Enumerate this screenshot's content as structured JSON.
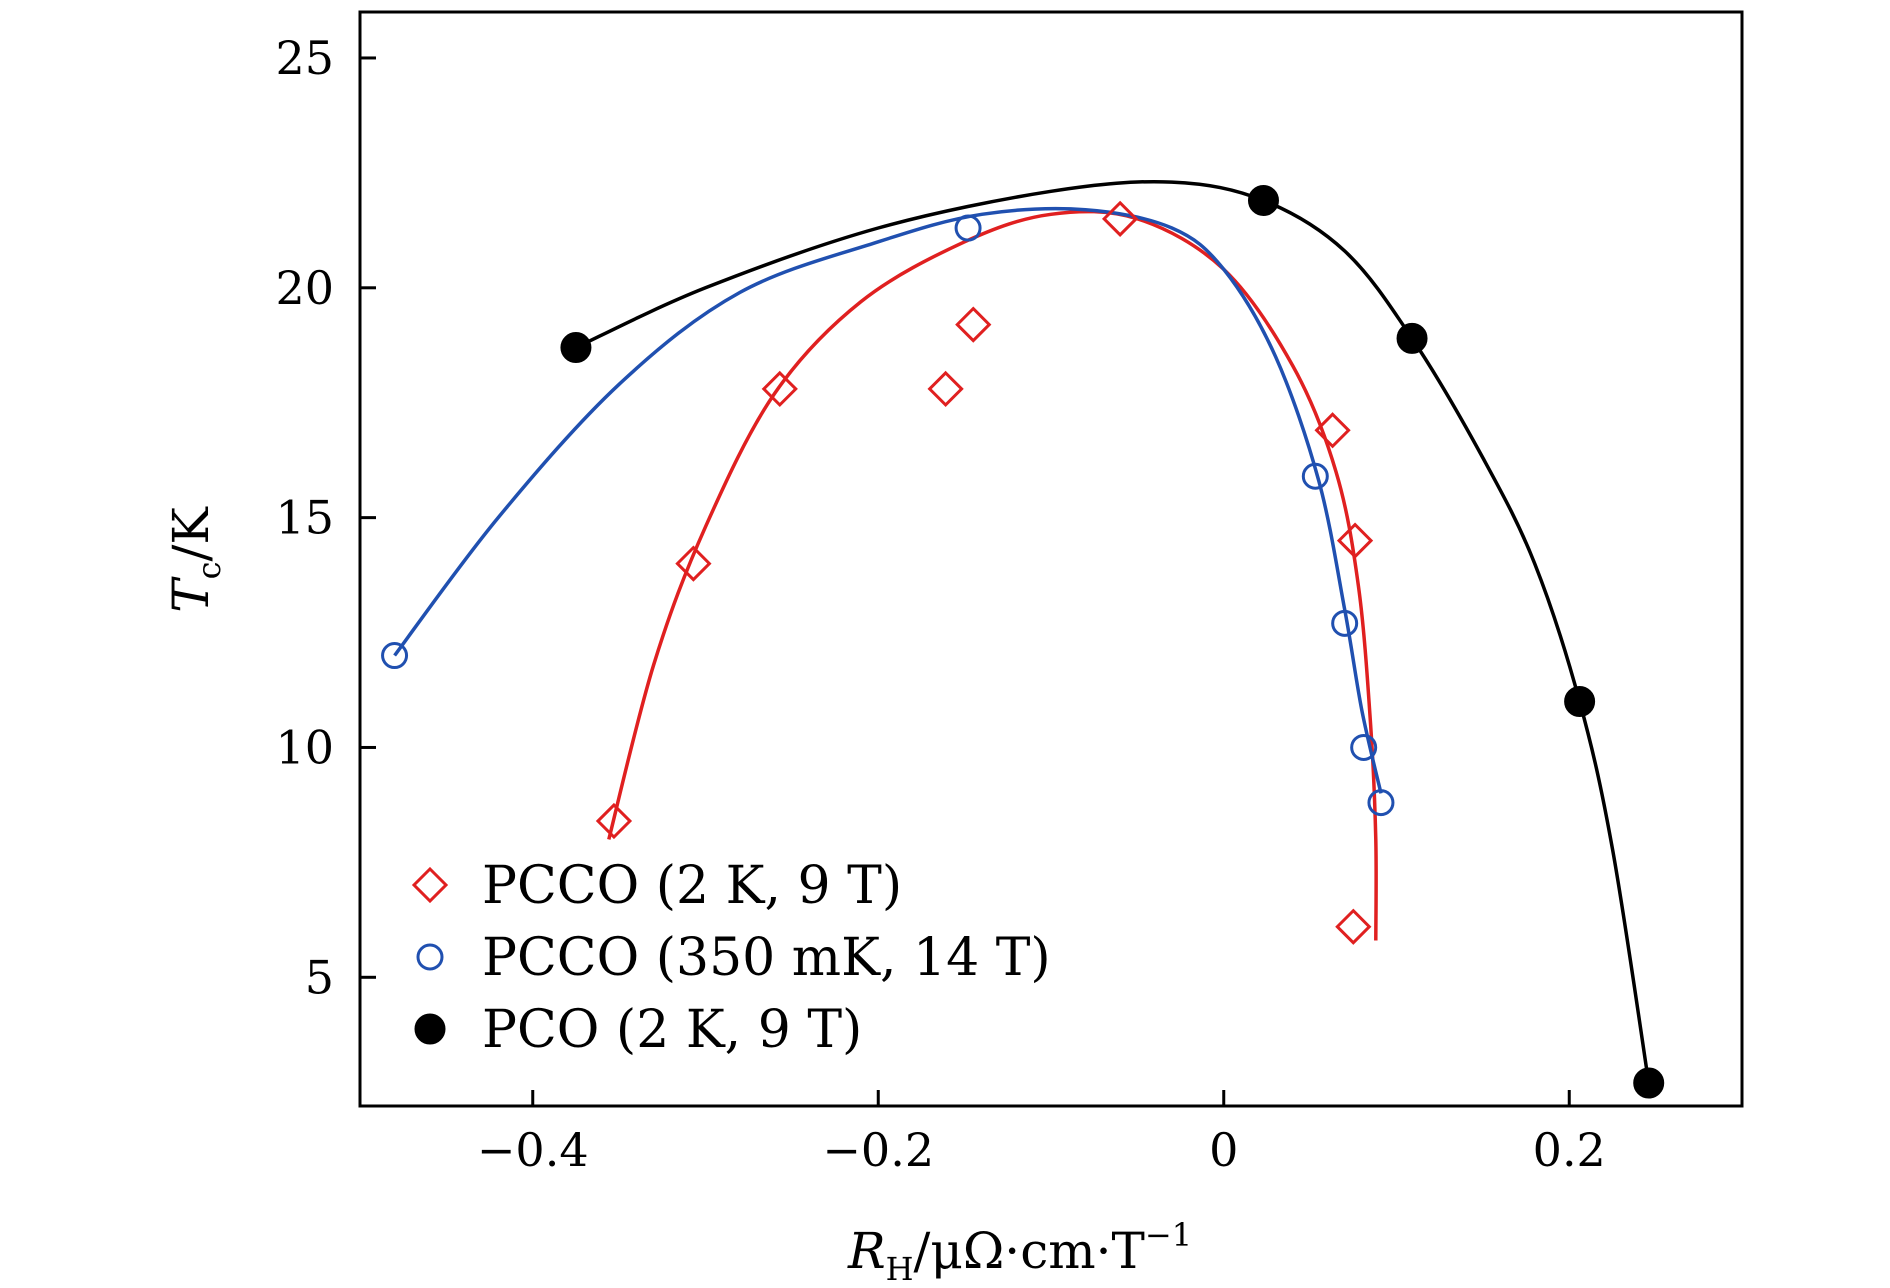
{
  "chart_data": {
    "type": "scatter",
    "title": "",
    "xlabel": {
      "main": "R",
      "sub": "H",
      "rest": "/μΩ·cm·T",
      "sup": "−1"
    },
    "ylabel": {
      "main": "T",
      "sub": "c",
      "rest": "/K"
    },
    "xlim": [
      -0.5,
      0.3
    ],
    "ylim": [
      2.2,
      26.0
    ],
    "x_ticks": [
      {
        "value": -0.4,
        "label": "−0.4"
      },
      {
        "value": -0.2,
        "label": "−0.2"
      },
      {
        "value": 0,
        "label": "0"
      },
      {
        "value": 0.2,
        "label": "0.2"
      }
    ],
    "y_ticks": [
      {
        "value": 5,
        "label": "5"
      },
      {
        "value": 10,
        "label": "10"
      },
      {
        "value": 15,
        "label": "15"
      },
      {
        "value": 20,
        "label": "20"
      },
      {
        "value": 25,
        "label": "25"
      }
    ],
    "legend_position": "bottom-left",
    "series": [
      {
        "name": "PCCO (2 K, 9 T)",
        "color": "#e02020",
        "marker": "diamond-open",
        "points": [
          {
            "x": -0.353,
            "y": 8.4
          },
          {
            "x": -0.307,
            "y": 14.0
          },
          {
            "x": -0.257,
            "y": 17.8
          },
          {
            "x": -0.161,
            "y": 17.8
          },
          {
            "x": -0.145,
            "y": 19.2
          },
          {
            "x": -0.06,
            "y": 21.5
          },
          {
            "x": 0.063,
            "y": 16.9
          },
          {
            "x": 0.076,
            "y": 14.5
          },
          {
            "x": 0.075,
            "y": 6.1
          }
        ],
        "fit": [
          {
            "x": -0.356,
            "y": 8.0
          },
          {
            "x": -0.33,
            "y": 11.8
          },
          {
            "x": -0.3,
            "y": 14.8
          },
          {
            "x": -0.26,
            "y": 17.7
          },
          {
            "x": -0.21,
            "y": 19.7
          },
          {
            "x": -0.15,
            "y": 21.0
          },
          {
            "x": -0.1,
            "y": 21.6
          },
          {
            "x": -0.05,
            "y": 21.5
          },
          {
            "x": 0.0,
            "y": 20.4
          },
          {
            "x": 0.04,
            "y": 18.3
          },
          {
            "x": 0.065,
            "y": 16.0
          },
          {
            "x": 0.078,
            "y": 13.5
          },
          {
            "x": 0.085,
            "y": 10.5
          },
          {
            "x": 0.088,
            "y": 8.0
          },
          {
            "x": 0.088,
            "y": 5.8
          }
        ]
      },
      {
        "name": "PCCO (350 mK, 14 T)",
        "color": "#2050b0",
        "marker": "circle-open",
        "points": [
          {
            "x": -0.48,
            "y": 12.0
          },
          {
            "x": -0.148,
            "y": 21.3
          },
          {
            "x": 0.053,
            "y": 15.9
          },
          {
            "x": 0.07,
            "y": 12.7
          },
          {
            "x": 0.081,
            "y": 10.0
          },
          {
            "x": 0.091,
            "y": 8.8
          }
        ],
        "fit": [
          {
            "x": -0.48,
            "y": 12.0
          },
          {
            "x": -0.42,
            "y": 15.0
          },
          {
            "x": -0.35,
            "y": 17.9
          },
          {
            "x": -0.28,
            "y": 19.9
          },
          {
            "x": -0.2,
            "y": 21.0
          },
          {
            "x": -0.14,
            "y": 21.6
          },
          {
            "x": -0.08,
            "y": 21.7
          },
          {
            "x": -0.03,
            "y": 21.3
          },
          {
            "x": 0.0,
            "y": 20.4
          },
          {
            "x": 0.03,
            "y": 18.5
          },
          {
            "x": 0.055,
            "y": 15.8
          },
          {
            "x": 0.07,
            "y": 13.0
          },
          {
            "x": 0.08,
            "y": 10.8
          },
          {
            "x": 0.091,
            "y": 9.0
          }
        ]
      },
      {
        "name": "PCO (2 K, 9 T)",
        "color": "#000000",
        "marker": "circle-filled",
        "points": [
          {
            "x": -0.375,
            "y": 18.7
          },
          {
            "x": 0.023,
            "y": 21.9
          },
          {
            "x": 0.109,
            "y": 18.9
          },
          {
            "x": 0.206,
            "y": 11.0
          },
          {
            "x": 0.246,
            "y": 2.7
          }
        ],
        "fit": [
          {
            "x": -0.375,
            "y": 18.7
          },
          {
            "x": -0.3,
            "y": 20.0
          },
          {
            "x": -0.2,
            "y": 21.3
          },
          {
            "x": -0.1,
            "y": 22.1
          },
          {
            "x": -0.03,
            "y": 22.3
          },
          {
            "x": 0.023,
            "y": 21.9
          },
          {
            "x": 0.07,
            "y": 20.8
          },
          {
            "x": 0.109,
            "y": 18.9
          },
          {
            "x": 0.15,
            "y": 16.3
          },
          {
            "x": 0.18,
            "y": 14.0
          },
          {
            "x": 0.206,
            "y": 11.0
          },
          {
            "x": 0.225,
            "y": 7.8
          },
          {
            "x": 0.246,
            "y": 2.7
          }
        ]
      }
    ]
  }
}
